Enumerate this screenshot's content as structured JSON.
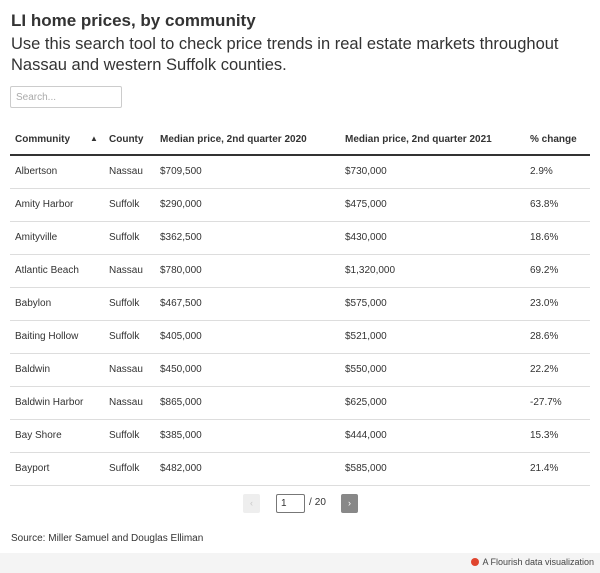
{
  "header": {
    "title": "LI home prices, by community",
    "subtitle": "Use this search tool to check price trends in real estate markets throughout Nassau and western Suffolk counties."
  },
  "search": {
    "placeholder": "Search..."
  },
  "table": {
    "sorted_column": "Community",
    "sort_direction": "ascending",
    "columns": [
      "Community",
      "County",
      "Median price, 2nd quarter 2020",
      "Median price, 2nd quarter 2021",
      "% change"
    ],
    "rows": [
      [
        "Albertson",
        "Nassau",
        "$709,500",
        "$730,000",
        "2.9%"
      ],
      [
        "Amity Harbor",
        "Suffolk",
        "$290,000",
        "$475,000",
        "63.8%"
      ],
      [
        "Amityville",
        "Suffolk",
        "$362,500",
        "$430,000",
        "18.6%"
      ],
      [
        "Atlantic Beach",
        "Nassau",
        "$780,000",
        "$1,320,000",
        "69.2%"
      ],
      [
        "Babylon",
        "Suffolk",
        "$467,500",
        "$575,000",
        "23.0%"
      ],
      [
        "Baiting Hollow",
        "Suffolk",
        "$405,000",
        "$521,000",
        "28.6%"
      ],
      [
        "Baldwin",
        "Nassau",
        "$450,000",
        "$550,000",
        "22.2%"
      ],
      [
        "Baldwin Harbor",
        "Nassau",
        "$865,000",
        "$625,000",
        "-27.7%"
      ],
      [
        "Bay Shore",
        "Suffolk",
        "$385,000",
        "$444,000",
        "15.3%"
      ],
      [
        "Bayport",
        "Suffolk",
        "$482,000",
        "$585,000",
        "21.4%"
      ]
    ]
  },
  "pagination": {
    "current_page": "1",
    "separator": "/",
    "total_pages": "20",
    "prev_glyph": "‹",
    "next_glyph": "›"
  },
  "footer": {
    "source": "Source: Miller Samuel and Douglas Elliman",
    "credit": "A Flourish data visualization"
  },
  "colors": {
    "text": "#333333",
    "flourish_accent": "#e0452f",
    "next_button": "#888888"
  }
}
